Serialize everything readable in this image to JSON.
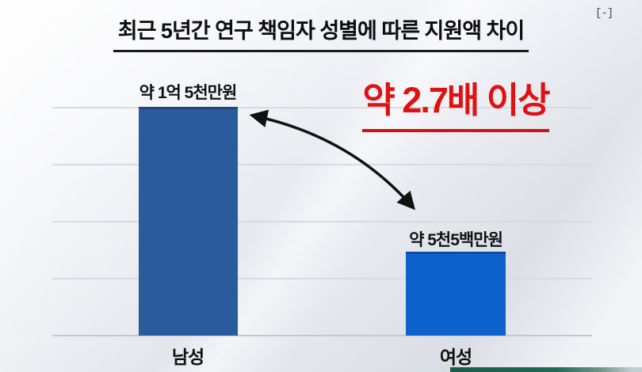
{
  "meta": {
    "corner_mark": "[-]"
  },
  "title": "최근 5년간 연구 책임자 성별에 따른 지원액 차이",
  "highlight": {
    "text": "약 2.7배 이상",
    "color": "#e01111"
  },
  "chart_data": {
    "type": "bar",
    "title": "최근 5년간 연구 책임자 성별에 따른 지원액 차이",
    "categories": [
      "남성",
      "여성"
    ],
    "values": [
      15000,
      5500
    ],
    "unit": "만원",
    "value_labels": [
      "약 1억 5천만원",
      "약 5천5백만원"
    ],
    "annotation": "약 2.7배 이상",
    "ratio": "약 2.7배 이상 차이 (남성 대 여성)",
    "bar_colors": [
      "#2a5b9c",
      "#0e62cd"
    ],
    "ylim": [
      0,
      15000
    ],
    "grid": true,
    "legend": false
  },
  "colors": {
    "male_bar": "#2a5b9c",
    "female_bar": "#0e62cd",
    "highlight_red": "#e01111",
    "arrow": "#111111",
    "gridline": "#d7dae1",
    "ticker_green": "#1d5b49"
  }
}
